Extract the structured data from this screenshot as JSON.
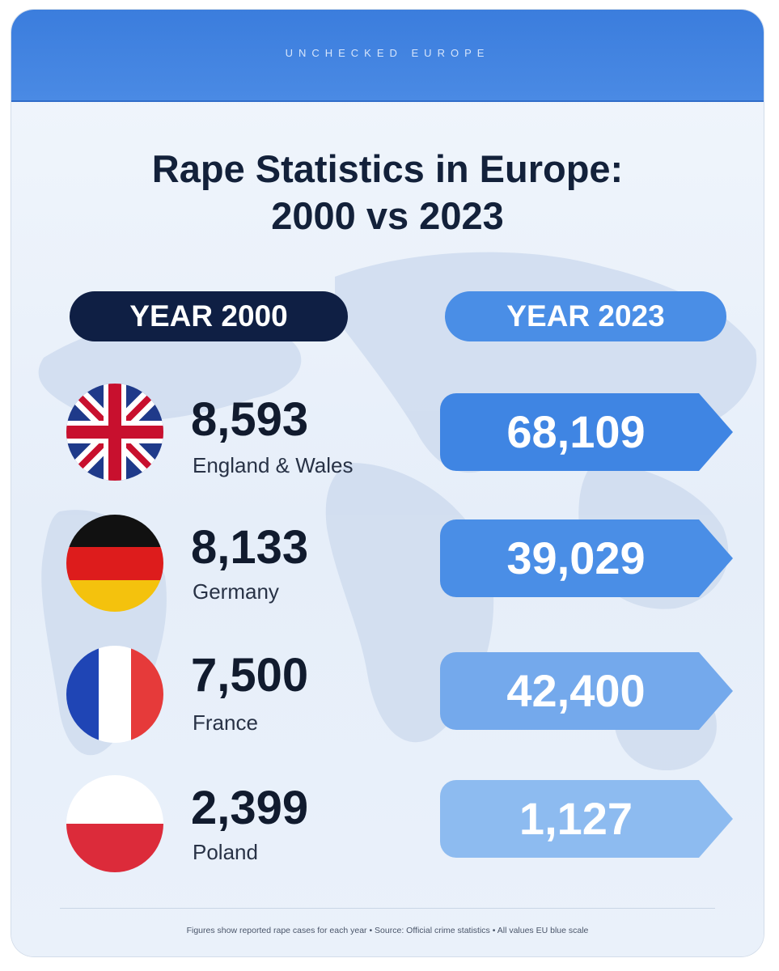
{
  "header": {
    "brand": "UNCHECKED EUROPE"
  },
  "title": {
    "line1": "Rape Statistics in Europe:",
    "line2": "2000 vs 2023"
  },
  "columns": {
    "left": "YEAR 2000",
    "right": "YEAR 2023"
  },
  "colors": {
    "banner": "#3b7ddd",
    "navy": "#0f1f44",
    "accent": "#4a8ee6"
  },
  "chart_data": {
    "type": "table",
    "columns": [
      "YEAR 2000",
      "YEAR 2023"
    ],
    "rows": [
      {
        "country": "England & Wales",
        "flag": "union-jack-flag",
        "y2000": "8,593",
        "y2023": "68,109"
      },
      {
        "country": "Germany",
        "flag": "germany-flag",
        "y2000": "8,133",
        "y2023": "39,029"
      },
      {
        "country": "France",
        "flag": "france-flag",
        "y2000": "7,500",
        "y2023": "42,400"
      },
      {
        "country": "Poland",
        "flag": "poland-flag",
        "y2000": "2,399",
        "y2023": "1,127"
      }
    ]
  },
  "footnote": "Figures show reported rape cases for each year • Source: Official crime statistics • All values EU blue scale"
}
